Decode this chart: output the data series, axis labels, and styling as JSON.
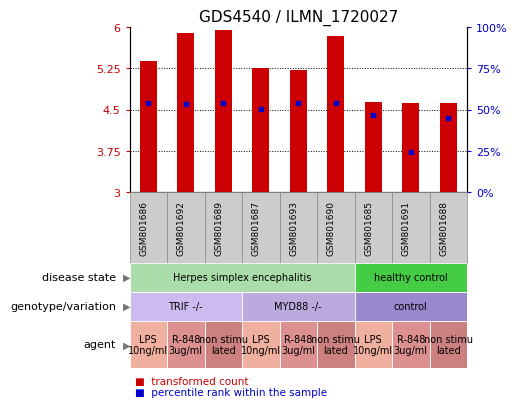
{
  "title": "GDS4540 / ILMN_1720027",
  "samples": [
    "GSM801686",
    "GSM801692",
    "GSM801689",
    "GSM801687",
    "GSM801693",
    "GSM801690",
    "GSM801685",
    "GSM801691",
    "GSM801688"
  ],
  "bar_heights": [
    5.38,
    5.88,
    5.95,
    5.26,
    5.21,
    5.83,
    4.64,
    4.62,
    4.62
  ],
  "blue_dot_values": [
    4.62,
    4.6,
    4.62,
    4.51,
    4.62,
    4.62,
    4.4,
    3.74,
    4.35
  ],
  "ylim": [
    3.0,
    6.0
  ],
  "yticks": [
    3.0,
    3.75,
    4.5,
    5.25,
    6.0
  ],
  "ytick_labels_left": [
    "3",
    "3.75",
    "4.5",
    "5.25",
    "6"
  ],
  "ytick_labels_right": [
    "0%",
    "25%",
    "50%",
    "75%",
    "100%"
  ],
  "bar_color": "#cc0000",
  "dot_color": "#0000cc",
  "disease_state_row": [
    {
      "label": "Herpes simplex encephalitis",
      "span": [
        0,
        6
      ],
      "color": "#aaddaa"
    },
    {
      "label": "healthy control",
      "span": [
        6,
        9
      ],
      "color": "#44cc44"
    }
  ],
  "genotype_row": [
    {
      "label": "TRIF -/-",
      "span": [
        0,
        3
      ],
      "color": "#ccbbee"
    },
    {
      "label": "MYD88 -/-",
      "span": [
        3,
        6
      ],
      "color": "#bbaadd"
    },
    {
      "label": "control",
      "span": [
        6,
        9
      ],
      "color": "#9988cc"
    }
  ],
  "agent_colors_cycle": [
    "#f0b0a0",
    "#dd9090",
    "#cc8080"
  ],
  "agent_row": [
    {
      "label": "LPS\n10ng/ml",
      "span": [
        0,
        1
      ],
      "color_idx": 0
    },
    {
      "label": "R-848\n3ug/ml",
      "span": [
        1,
        2
      ],
      "color_idx": 1
    },
    {
      "label": "non stimu\nlated",
      "span": [
        2,
        3
      ],
      "color_idx": 2
    },
    {
      "label": "LPS\n10ng/ml",
      "span": [
        3,
        4
      ],
      "color_idx": 0
    },
    {
      "label": "R-848\n3ug/ml",
      "span": [
        4,
        5
      ],
      "color_idx": 1
    },
    {
      "label": "non stimu\nlated",
      "span": [
        5,
        6
      ],
      "color_idx": 2
    },
    {
      "label": "LPS\n10ng/ml",
      "span": [
        6,
        7
      ],
      "color_idx": 0
    },
    {
      "label": "R-848\n3ug/ml",
      "span": [
        7,
        8
      ],
      "color_idx": 1
    },
    {
      "label": "non stimu\nlated",
      "span": [
        8,
        9
      ],
      "color_idx": 2
    }
  ],
  "row_labels": [
    "disease state",
    "genotype/variation",
    "agent"
  ],
  "legend_labels": [
    "transformed count",
    "percentile rank within the sample"
  ],
  "legend_colors": [
    "#cc0000",
    "#0000cc"
  ],
  "sample_box_color": "#cccccc",
  "sample_box_edge": "#888888"
}
